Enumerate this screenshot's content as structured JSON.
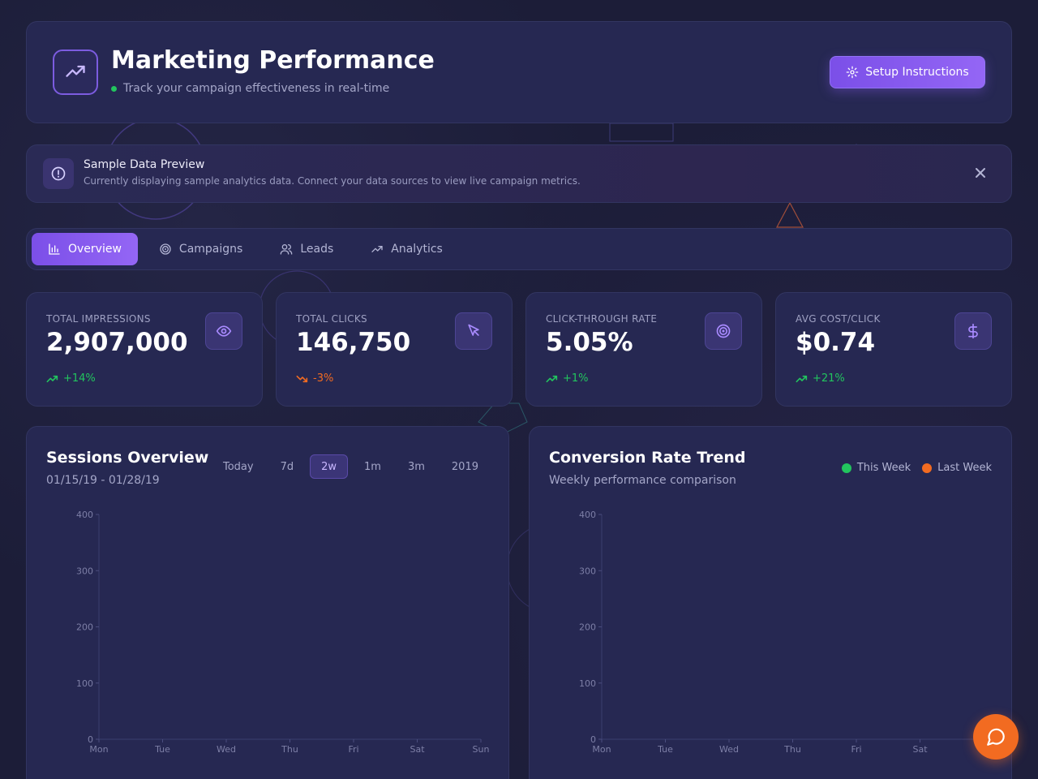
{
  "header": {
    "title": "Marketing Performance",
    "subtitle": "Track your campaign effectiveness in real-time",
    "setup_label": "Setup Instructions"
  },
  "notice": {
    "title": "Sample Data Preview",
    "text": "Currently displaying sample analytics data. Connect your data sources to view live campaign metrics."
  },
  "tabs": [
    {
      "label": "Overview",
      "active": true,
      "icon": "bar-chart-icon"
    },
    {
      "label": "Campaigns",
      "active": false,
      "icon": "target-icon"
    },
    {
      "label": "Leads",
      "active": false,
      "icon": "users-icon"
    },
    {
      "label": "Analytics",
      "active": false,
      "icon": "trending-up-icon"
    }
  ],
  "kpis": [
    {
      "label": "TOTAL IMPRESSIONS",
      "value": "2,907,000",
      "change": "+14%",
      "direction": "up",
      "icon": "eye-icon"
    },
    {
      "label": "TOTAL CLICKS",
      "value": "146,750",
      "change": "-3%",
      "direction": "down",
      "icon": "cursor-icon"
    },
    {
      "label": "CLICK-THROUGH RATE",
      "value": "5.05%",
      "change": "+1%",
      "direction": "up",
      "icon": "target-icon"
    },
    {
      "label": "AVG COST/CLICK",
      "value": "$0.74",
      "change": "+21%",
      "direction": "up",
      "icon": "dollar-icon"
    }
  ],
  "sessions": {
    "title": "Sessions Overview",
    "date_range": "01/15/19 - 01/28/19",
    "ranges": [
      "Today",
      "7d",
      "2w",
      "1m",
      "3m",
      "2019"
    ],
    "active_range": "2w"
  },
  "conversion": {
    "title": "Conversion Rate Trend",
    "subtitle": "Weekly performance comparison",
    "legend": [
      {
        "label": "This Week",
        "color": "#22c55e"
      },
      {
        "label": "Last Week",
        "color": "#f26b21"
      }
    ]
  },
  "chart_data": [
    {
      "type": "line",
      "title": "Sessions Overview",
      "categories": [
        "Mon",
        "Tue",
        "Wed",
        "Thu",
        "Fri",
        "Sat",
        "Sun"
      ],
      "yticks": [
        0,
        100,
        200,
        300,
        400
      ],
      "ylim": [
        0,
        400
      ],
      "series": []
    },
    {
      "type": "line",
      "title": "Conversion Rate Trend",
      "categories": [
        "Mon",
        "Tue",
        "Wed",
        "Thu",
        "Fri",
        "Sat"
      ],
      "yticks": [
        0,
        100,
        200,
        300,
        400
      ],
      "ylim": [
        0,
        400
      ],
      "series": []
    }
  ],
  "colors": {
    "accent": "#8b5cf6",
    "positive": "#22c55e",
    "negative": "#f26b21"
  }
}
